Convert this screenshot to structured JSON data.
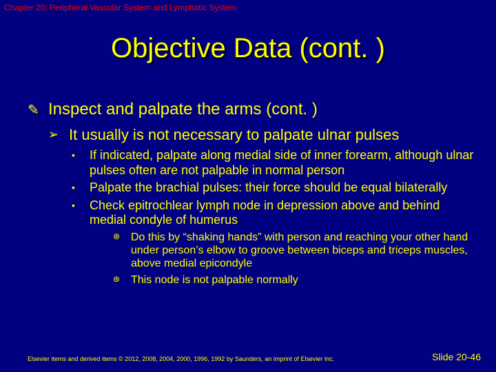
{
  "colors": {
    "background": "#000080",
    "text": "#ffff00",
    "header": "#ff0000",
    "shadow": "#000000"
  },
  "typography": {
    "chapter_fontsize": 12,
    "title_fontsize": 40,
    "level1_fontsize": 24,
    "level2_fontsize": 22,
    "level3_fontsize": 18,
    "level4_fontsize": 16,
    "footer_left_fontsize": 9,
    "footer_right_fontsize": 14
  },
  "chapter": "Chapter 20: Peripheral Vascular System and Lymphatic System",
  "title": "Objective Data (cont. )",
  "level1": {
    "bullet": "✎",
    "text": "Inspect and palpate the arms (cont. )"
  },
  "level2": {
    "bullet": "➢",
    "text": "It usually is not necessary to palpate ulnar pulses"
  },
  "level3": [
    {
      "bullet": "•",
      "text": "If indicated, palpate along medial side of inner forearm, although ulnar pulses often are not palpable in normal person"
    },
    {
      "bullet": "•",
      "text": "Palpate the brachial pulses: their force should be equal bilaterally"
    },
    {
      "bullet": "•",
      "text": "Check epitrochlear lymph node in depression above and behind medial condyle of humerus"
    }
  ],
  "level4": [
    {
      "bullet": "⊛",
      "text": "Do this by “shaking hands” with person and reaching your other hand under person’s elbow to groove between biceps and triceps muscles, above medial epicondyle"
    },
    {
      "bullet": "⊛",
      "text": "This node is not palpable normally"
    }
  ],
  "footer": {
    "left": "Elsevier items and derived items © 2012, 2008, 2004, 2000, 1996, 1992 by Saunders, an imprint of Elsevier Inc.",
    "right": "Slide 20-46"
  }
}
